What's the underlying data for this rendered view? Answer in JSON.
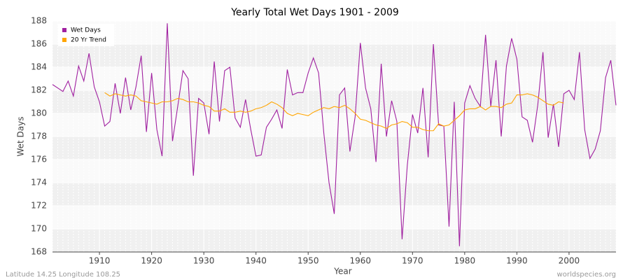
{
  "chart_data": {
    "type": "line",
    "title": "Yearly Total Wet Days 1901 - 2009",
    "x_label": "Year",
    "y_label": "Wet Days",
    "footer_left": "Latitude 14.25 Longitude 108.25",
    "footer_right": "worldspecies.org",
    "legend": "top-left",
    "grid": true,
    "x": [
      1901,
      1902,
      1903,
      1904,
      1905,
      1906,
      1907,
      1908,
      1909,
      1910,
      1911,
      1912,
      1913,
      1914,
      1915,
      1916,
      1917,
      1918,
      1919,
      1920,
      1921,
      1922,
      1923,
      1924,
      1925,
      1926,
      1927,
      1928,
      1929,
      1930,
      1931,
      1932,
      1933,
      1934,
      1935,
      1936,
      1937,
      1938,
      1939,
      1940,
      1941,
      1942,
      1943,
      1944,
      1945,
      1946,
      1947,
      1948,
      1949,
      1950,
      1951,
      1952,
      1953,
      1954,
      1955,
      1956,
      1957,
      1958,
      1959,
      1960,
      1961,
      1962,
      1963,
      1964,
      1965,
      1966,
      1967,
      1968,
      1969,
      1970,
      1971,
      1972,
      1973,
      1974,
      1975,
      1976,
      1977,
      1978,
      1979,
      1980,
      1981,
      1982,
      1983,
      1984,
      1985,
      1986,
      1987,
      1988,
      1989,
      1990,
      1991,
      1992,
      1993,
      1994,
      1995,
      1996,
      1997,
      1998,
      1999,
      2000,
      2001,
      2002,
      2003,
      2004,
      2005,
      2006,
      2007,
      2008,
      2009
    ],
    "series": [
      {
        "name": "Wet Days",
        "color": "#a020a0",
        "values": [
          182.5,
          182.2,
          181.9,
          182.8,
          181.5,
          184.1,
          182.8,
          185.2,
          182.3,
          181.0,
          178.9,
          179.3,
          182.6,
          180.0,
          183.1,
          180.3,
          182.3,
          185.0,
          178.4,
          183.5,
          178.6,
          176.3,
          187.8,
          177.6,
          180.6,
          183.7,
          183.0,
          174.6,
          181.3,
          180.9,
          178.2,
          184.5,
          179.3,
          183.7,
          184.0,
          179.6,
          178.8,
          181.2,
          178.6,
          176.3,
          176.4,
          178.8,
          179.5,
          180.3,
          178.7,
          183.8,
          181.6,
          181.8,
          181.8,
          183.5,
          184.8,
          183.5,
          178.3,
          174.0,
          171.3,
          181.6,
          182.2,
          176.7,
          179.7,
          186.1,
          182.2,
          180.4,
          175.8,
          184.3,
          178.0,
          181.1,
          179.3,
          169.1,
          175.5,
          179.9,
          178.3,
          182.2,
          176.2,
          186.0,
          179.0,
          178.9,
          170.2,
          181.0,
          168.5,
          180.9,
          182.4,
          181.3,
          180.6,
          186.8,
          180.6,
          184.6,
          178.0,
          184.1,
          186.5,
          184.7,
          179.7,
          179.4,
          177.5,
          180.7,
          185.3,
          177.9,
          180.8,
          177.1,
          181.7,
          182.0,
          181.2,
          185.3,
          178.6,
          176.1,
          176.9,
          178.5,
          183.1,
          184.6,
          180.7
        ]
      },
      {
        "name": "20 Yr Trend",
        "color": "#ffa500",
        "values": [
          null,
          null,
          null,
          null,
          null,
          null,
          null,
          null,
          null,
          null,
          181.8,
          181.5,
          181.7,
          181.6,
          181.5,
          181.6,
          181.5,
          181.1,
          181.0,
          180.9,
          180.8,
          181.0,
          181.0,
          181.1,
          181.3,
          181.2,
          181.0,
          181.0,
          180.9,
          180.7,
          180.6,
          180.2,
          180.2,
          180.4,
          180.1,
          180.1,
          180.2,
          180.1,
          180.2,
          180.4,
          180.5,
          180.7,
          181.0,
          180.8,
          180.5,
          180.0,
          179.8,
          180.0,
          179.9,
          179.8,
          180.1,
          180.3,
          180.5,
          180.4,
          180.6,
          180.5,
          180.7,
          180.4,
          180.0,
          179.5,
          179.4,
          179.2,
          179.0,
          178.9,
          178.7,
          179.0,
          179.1,
          179.3,
          179.2,
          178.8,
          178.8,
          178.6,
          178.5,
          178.5,
          179.1,
          178.9,
          179.0,
          179.4,
          179.8,
          180.3,
          180.4,
          180.4,
          180.6,
          180.3,
          180.6,
          180.6,
          180.5,
          180.8,
          180.9,
          181.6,
          181.6,
          181.7,
          181.6,
          181.4,
          181.1,
          180.8,
          180.7,
          181.0,
          180.9,
          null,
          null,
          null,
          null,
          null,
          null,
          null,
          null,
          null,
          null
        ]
      }
    ],
    "xlim": [
      1901,
      2009
    ],
    "xticks": [
      1910,
      1920,
      1930,
      1940,
      1950,
      1960,
      1970,
      1980,
      1990,
      2000
    ],
    "ylim": [
      168,
      188
    ],
    "yticks": [
      168,
      170,
      172,
      174,
      176,
      178,
      180,
      182,
      184,
      186,
      188
    ]
  }
}
